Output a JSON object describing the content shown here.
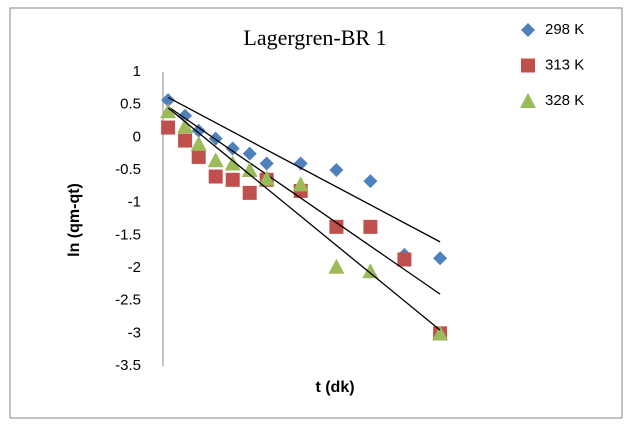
{
  "chart_data": {
    "type": "scatter",
    "title": "Lagergren-BR 1",
    "x_label": "t (dk)",
    "y_label": "ln (qm-qt)",
    "x": [
      0.3,
      1.3,
      2.1,
      3.1,
      4.1,
      5.1,
      6.1,
      8.1,
      10.2,
      12.2,
      14.2,
      16.3
    ],
    "xlim": [
      0,
      18
    ],
    "ylim": [
      -3.5,
      1
    ],
    "yticks": [
      1,
      0.5,
      0,
      -0.5,
      -1,
      -1.5,
      -2,
      -2.5,
      -3,
      -3.5
    ],
    "legend": "right",
    "series": [
      {
        "name": "298 K",
        "color": "#4f81bd",
        "marker": "diamond",
        "values": [
          0.57,
          0.33,
          0.1,
          -0.02,
          -0.17,
          -0.25,
          -0.4,
          -0.4,
          -0.5,
          -0.67,
          -1.8,
          -1.85
        ],
        "trend": [
          0.61,
          -1.6
        ]
      },
      {
        "name": "313 K",
        "color": "#c0504d",
        "marker": "square",
        "values": [
          0.15,
          -0.05,
          -0.3,
          -0.6,
          -0.65,
          -0.85,
          -0.65,
          -0.82,
          -1.37,
          -1.37,
          -1.87,
          -3.0
        ],
        "trend": [
          0.47,
          -2.4
        ]
      },
      {
        "name": "328 K",
        "color": "#9bbb59",
        "marker": "triangle",
        "values": [
          0.4,
          0.17,
          -0.1,
          -0.35,
          -0.4,
          -0.5,
          -0.63,
          -0.72,
          -1.98,
          -2.05,
          null,
          -3.0
        ],
        "trend": [
          0.45,
          -2.95
        ]
      }
    ]
  }
}
